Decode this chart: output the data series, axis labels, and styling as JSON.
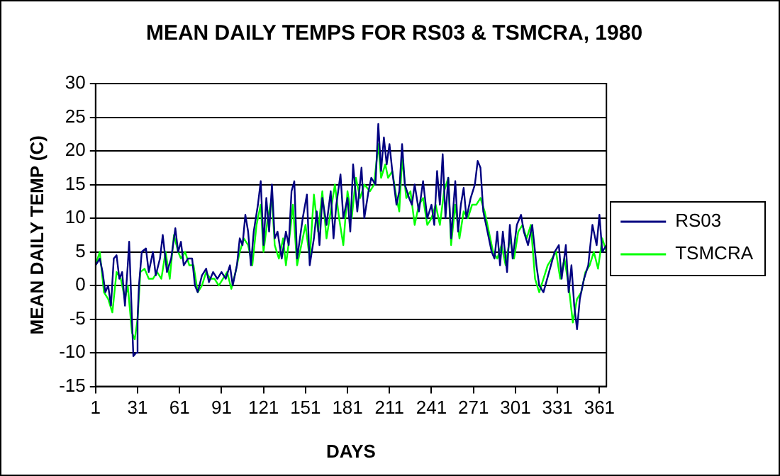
{
  "chart_data": {
    "type": "line",
    "title": "MEAN DAILY TEMPS FOR RS03 & TSMCRA, 1980",
    "xlabel": "DAYS",
    "ylabel": "MEAN DAILY TEMP (C)",
    "xlim": [
      1,
      366
    ],
    "xticks": [
      1,
      31,
      61,
      91,
      121,
      151,
      181,
      211,
      241,
      271,
      301,
      331,
      361
    ],
    "ylim": [
      -15,
      30
    ],
    "yticks": [
      -15,
      -10,
      -5,
      0,
      5,
      10,
      15,
      20,
      25,
      30
    ],
    "grid": "y",
    "legend": "right",
    "marker": "none",
    "line_style": "solid",
    "series": [
      {
        "name": "RS03",
        "color": "#000080",
        "x": [
          1,
          4,
          6,
          8,
          10,
          12,
          14,
          16,
          18,
          20,
          22,
          24,
          25,
          27,
          28,
          30,
          31,
          32,
          34,
          37,
          39,
          42,
          44,
          47,
          49,
          52,
          55,
          58,
          60,
          62,
          64,
          67,
          70,
          72,
          74,
          77,
          80,
          82,
          85,
          88,
          91,
          94,
          97,
          99,
          102,
          104,
          106,
          108,
          110,
          112,
          114,
          117,
          119,
          121,
          123,
          125,
          127,
          129,
          131,
          134,
          137,
          139,
          141,
          143,
          145,
          147,
          149,
          152,
          154,
          157,
          159,
          161,
          163,
          166,
          169,
          171,
          173,
          176,
          178,
          181,
          183,
          185,
          188,
          191,
          193,
          196,
          198,
          201,
          203,
          205,
          207,
          209,
          211,
          213,
          216,
          218,
          220,
          222,
          225,
          227,
          229,
          232,
          235,
          238,
          241,
          243,
          245,
          247,
          249,
          251,
          253,
          255,
          258,
          260,
          262,
          264,
          266,
          269,
          272,
          274,
          276,
          278,
          281,
          284,
          286,
          288,
          290,
          292,
          295,
          297,
          299,
          302,
          305,
          307,
          310,
          313,
          316,
          318,
          321,
          325,
          329,
          332,
          334,
          337,
          339,
          341,
          343,
          345,
          347,
          350,
          353,
          356,
          359,
          361,
          363,
          366
        ],
        "values": [
          3,
          4,
          2,
          -1,
          0,
          -3,
          4,
          4.5,
          1,
          2,
          -3,
          3,
          6.5,
          -5,
          -10.5,
          -10,
          -5,
          0,
          5,
          5.5,
          2,
          5,
          1.5,
          4,
          7.5,
          2,
          4,
          8.5,
          5,
          6.5,
          3,
          4,
          4,
          0,
          -1,
          1.5,
          2.5,
          0.5,
          2,
          1,
          2,
          1,
          3,
          0,
          3,
          7,
          6,
          10.5,
          8,
          3,
          8,
          12,
          15.5,
          6,
          13,
          8,
          15,
          7,
          8,
          4,
          8,
          6,
          14,
          15.5,
          4,
          7,
          10,
          13.5,
          3,
          7,
          11,
          6,
          13,
          9,
          14,
          7,
          12,
          16.5,
          10,
          13,
          8,
          18,
          11,
          17.5,
          10,
          14,
          16,
          15,
          24,
          17,
          22,
          18,
          21,
          17,
          12,
          14,
          21,
          15,
          13,
          12,
          15,
          11,
          15.5,
          10,
          12,
          9,
          17,
          12,
          19.5,
          10,
          16,
          7,
          15.5,
          8,
          12,
          14.5,
          10,
          13,
          15,
          18.5,
          17.5,
          11,
          8,
          5,
          4,
          8,
          3,
          8,
          2,
          9,
          4,
          9,
          10.5,
          8,
          6,
          9,
          3,
          0,
          -1,
          2,
          5,
          6,
          1,
          6,
          -1,
          3,
          -3,
          -6.5,
          -2,
          1,
          3,
          9,
          6,
          10.5,
          5,
          6
        ]
      },
      {
        "name": "TSMCRA",
        "color": "#00ff00",
        "x": [
          1,
          4,
          7,
          10,
          13,
          16,
          19,
          22,
          24,
          27,
          29,
          31,
          33,
          36,
          39,
          42,
          45,
          48,
          51,
          54,
          57,
          60,
          62,
          65,
          68,
          71,
          74,
          77,
          80,
          83,
          86,
          89,
          92,
          95,
          98,
          101,
          104,
          107,
          110,
          113,
          116,
          119,
          121,
          124,
          127,
          129,
          132,
          135,
          137,
          140,
          142,
          145,
          148,
          151,
          154,
          157,
          160,
          163,
          166,
          169,
          172,
          175,
          178,
          181,
          184,
          187,
          190,
          193,
          197,
          200,
          203,
          205,
          208,
          210,
          213,
          216,
          218,
          220,
          223,
          226,
          229,
          232,
          235,
          238,
          241,
          244,
          247,
          250,
          253,
          255,
          258,
          261,
          264,
          267,
          270,
          273,
          276,
          279,
          282,
          285,
          288,
          291,
          294,
          297,
          300,
          303,
          306,
          309,
          312,
          315,
          318,
          321,
          324,
          327,
          330,
          333,
          336,
          339,
          342,
          345,
          348,
          351,
          354,
          357,
          360,
          363,
          366
        ],
        "values": [
          3,
          5,
          -1,
          -2,
          -4,
          2,
          1,
          -2,
          0,
          -7,
          -8,
          -5,
          2,
          2.5,
          1,
          1,
          2,
          1,
          5,
          1,
          7.5,
          5,
          4,
          5,
          3,
          3,
          -1,
          0,
          2,
          1,
          1,
          0,
          1,
          2,
          -0.5,
          2,
          5,
          7,
          6,
          3,
          9,
          12,
          5,
          10,
          13,
          6,
          4,
          7,
          3,
          8,
          12,
          3,
          6,
          9,
          4,
          13.5,
          8,
          14,
          7,
          11,
          15,
          10,
          6,
          14,
          10,
          16,
          13,
          15,
          14,
          15,
          21,
          16,
          18,
          16,
          17,
          13,
          11,
          19,
          13,
          14,
          9,
          12,
          13,
          9,
          10,
          12,
          9,
          14,
          16,
          6,
          12,
          7,
          11,
          10,
          12,
          12,
          13,
          11,
          8,
          5,
          4,
          6,
          3,
          7,
          4,
          8,
          9,
          7,
          9,
          1,
          -1,
          1,
          3,
          4,
          5,
          1,
          4,
          0,
          -5.5,
          -2,
          -1,
          2,
          3,
          5,
          2.5,
          7,
          5
        ]
      }
    ]
  }
}
